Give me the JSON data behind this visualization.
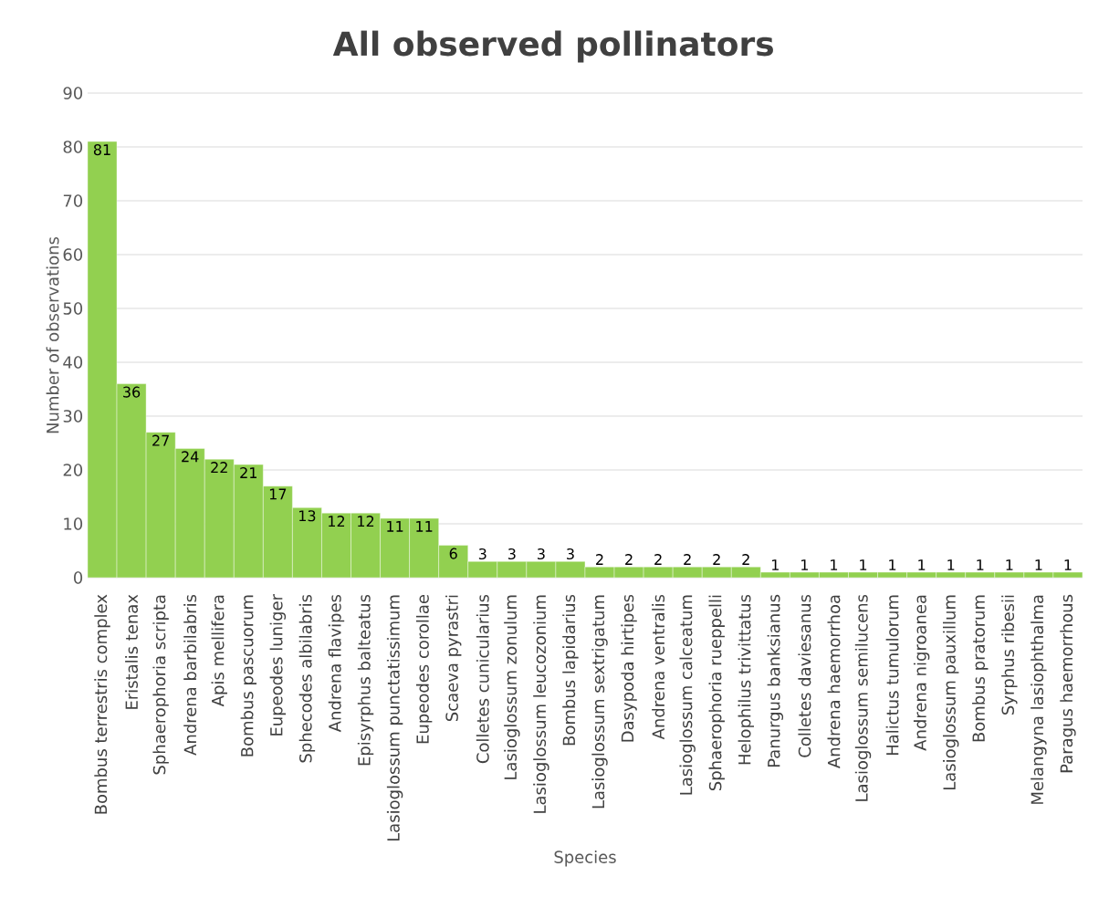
{
  "chart_data": {
    "type": "bar",
    "title": "All observed pollinators",
    "xlabel": "Species",
    "ylabel": "Number of observations",
    "categories": [
      "Bombus terrestris complex",
      "Eristalis tenax",
      "Sphaerophoria scripta",
      "Andrena barbilabris",
      "Apis mellifera",
      "Bombus pascuorum",
      "Eupeodes luniger",
      "Sphecodes albilabris",
      "Andrena flavipes",
      "Episyrphus balteatus",
      "Lasioglossum punctatissimum",
      "Eupeodes corollae",
      "Scaeva pyrastri",
      "Colletes cunicularius",
      "Lasioglossum zonulum",
      "Lasioglossum leucozonium",
      "Bombus lapidarius",
      "Lasioglossum sextrigatum",
      "Dasypoda hirtipes",
      "Andrena ventralis",
      "Lasioglossum calceatum",
      "Sphaerophoria rueppelli",
      "Helophilus trivittatus",
      "Panurgus banksianus",
      "Colletes daviesanus",
      "Andrena haemorrhoa",
      "Lasioglossum semilucens",
      "Halictus tumulorum",
      "Andrena nigroanea",
      "Lasioglossum pauxillum",
      "Bombus pratorum",
      "Syrphus ribesii",
      "Melangyna lasiophthalma",
      "Paragus haemorrhous"
    ],
    "values": [
      81,
      36,
      27,
      24,
      22,
      21,
      17,
      13,
      12,
      12,
      11,
      11,
      6,
      3,
      3,
      3,
      3,
      2,
      2,
      2,
      2,
      2,
      2,
      1,
      1,
      1,
      1,
      1,
      1,
      1,
      1,
      1,
      1,
      1
    ],
    "color": "#92d050",
    "ylim": [
      0,
      90
    ],
    "yticks": [
      0,
      10,
      20,
      30,
      40,
      50,
      60,
      70,
      80,
      90
    ],
    "grid": "y",
    "data_labels": true
  }
}
